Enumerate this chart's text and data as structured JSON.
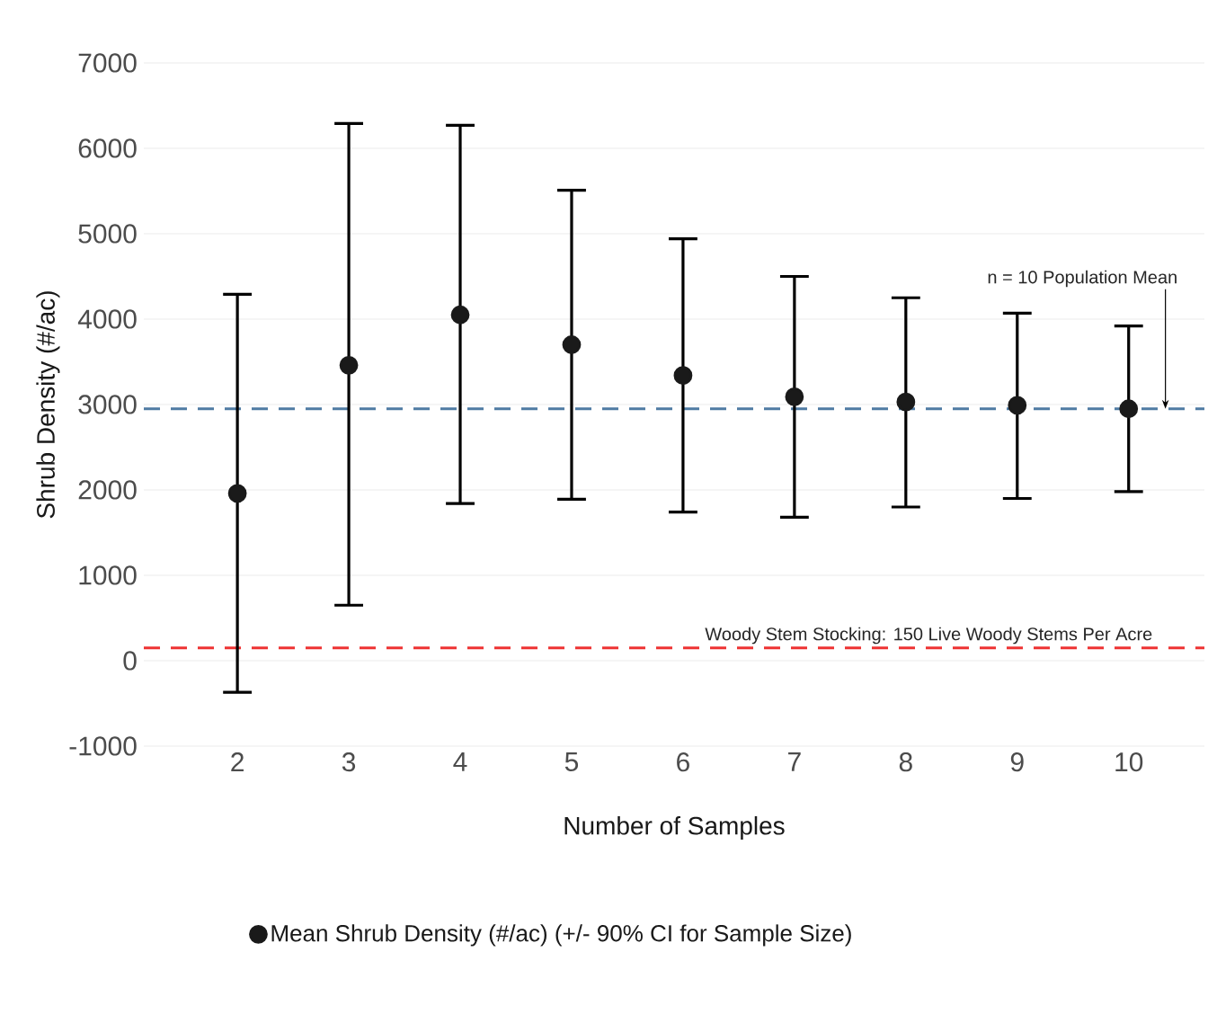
{
  "chart_data": {
    "type": "scatter",
    "xlabel": "Number of Samples",
    "ylabel": "Shrub Density (#/ac)",
    "x": [
      2,
      3,
      4,
      5,
      6,
      7,
      8,
      9,
      10
    ],
    "series": [
      {
        "name": "Mean Shrub Density (#/ac) (+/- 90% CI for Sample Size)",
        "color": "#1a1a1a",
        "values": [
          1960,
          3460,
          4050,
          3700,
          3340,
          3090,
          3030,
          2990,
          2950
        ],
        "errors": [
          [
            -370,
            4290
          ],
          [
            650,
            6290
          ],
          [
            1840,
            6270
          ],
          [
            1890,
            5510
          ],
          [
            1740,
            4940
          ],
          [
            1680,
            4500
          ],
          [
            1800,
            4250
          ],
          [
            1900,
            4070
          ],
          [
            1980,
            3920
          ]
        ]
      }
    ],
    "ref_lines": [
      {
        "axis": "y",
        "value": 2950,
        "color": "#4f7ba3",
        "line_style": "dashed"
      },
      {
        "axis": "y",
        "value": 150,
        "label": "Woody Stem Stocking: 150 Live Woody Stems Per Acre",
        "color": "#ee3333",
        "line_style": "dashed"
      }
    ],
    "annotations": [
      {
        "text": "n = 10 Population Mean",
        "x": 10.33,
        "y": 2950
      }
    ],
    "xlim": [
      1.16,
      10.68
    ],
    "ylim": [
      -1000,
      7000
    ],
    "xticks": [
      2,
      3,
      4,
      5,
      6,
      7,
      8,
      9,
      10
    ],
    "yticks": [
      -1000,
      0,
      1000,
      2000,
      3000,
      4000,
      5000,
      6000,
      7000
    ],
    "grid": "y",
    "legend": "bottom"
  }
}
